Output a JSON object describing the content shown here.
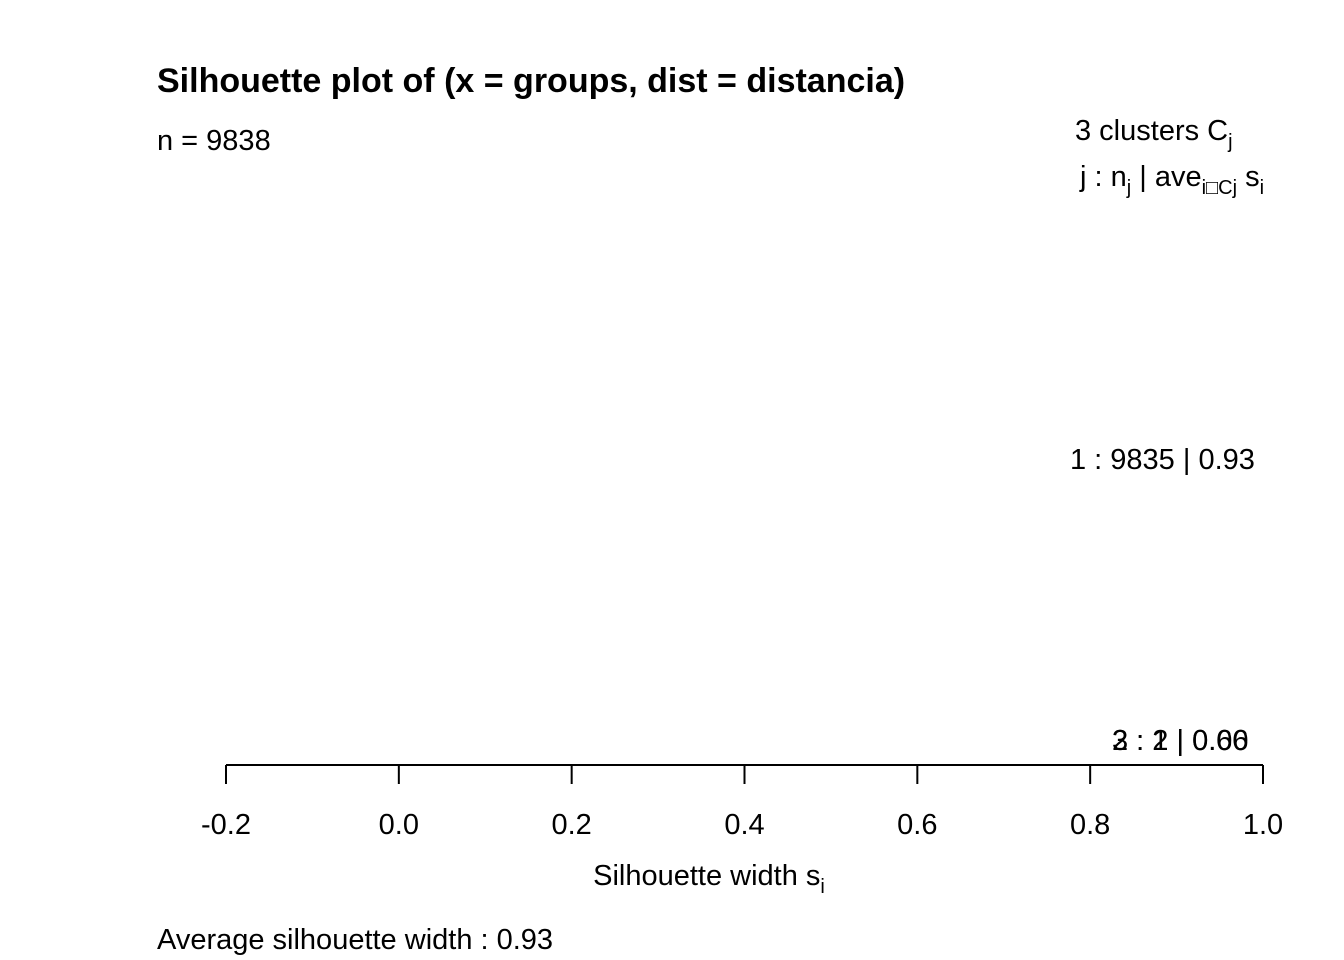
{
  "chart_data": {
    "type": "bar",
    "title": "Silhouette plot of (x = groups, dist = distancia)",
    "subtitle": "n = 9838",
    "xlabel": "Silhouette width s",
    "xlabel_subscript": "i",
    "xlim": [
      -0.2,
      1.0
    ],
    "x_ticks": [
      -0.2,
      0.0,
      0.2,
      0.4,
      0.6,
      0.8,
      1.0
    ],
    "x_tick_labels": [
      "-0.2",
      "0.0",
      "0.2",
      "0.4",
      "0.6",
      "0.8",
      "1.0"
    ],
    "grid": false,
    "legend_header": {
      "line1_prefix": "3  clusters  C",
      "line1_sub": "j",
      "line2_a": "j :  n",
      "line2_a_sub": "j",
      "line2_b": " | ave",
      "line2_b_sub": "i□Cj",
      "line2_c": "  s",
      "line2_c_sub": "i"
    },
    "clusters": [
      {
        "label": "1 :   9835  |  0.93",
        "j": 1,
        "n": 9835,
        "ave_width": 0.93
      },
      {
        "label": "2 :   2  |  0.66",
        "j": 2,
        "n": 2,
        "ave_width": 0.66
      },
      {
        "label": "3 :   1  |  0.00",
        "j": 3,
        "n": 1,
        "ave_width": 0.0
      }
    ],
    "average_label": "Average silhouette width :  0.93",
    "average_silhouette_width": 0.93
  }
}
